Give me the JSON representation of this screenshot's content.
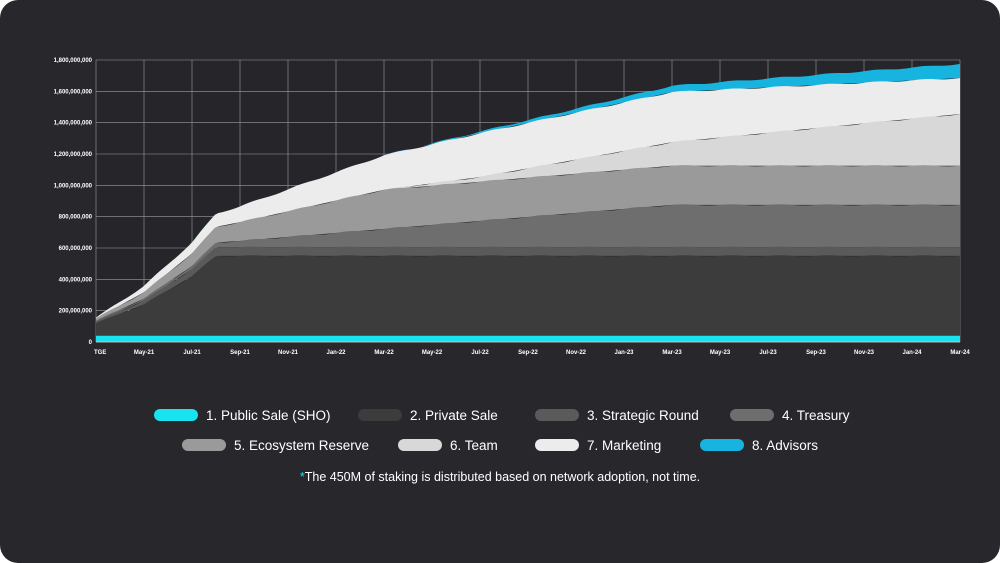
{
  "chart_data": {
    "type": "area",
    "stacked": true,
    "title": "",
    "xlabel": "",
    "ylabel": "",
    "ylim": [
      0,
      1800000000
    ],
    "y_ticks": [
      0,
      200000000,
      400000000,
      600000000,
      800000000,
      1000000000,
      1200000000,
      1400000000,
      1600000000,
      1800000000
    ],
    "y_tick_labels": [
      "0",
      "200,000,000",
      "400,000,000",
      "600,000,000",
      "800,000,000",
      "1,000,000,000",
      "1,200,000,000",
      "1,400,000,000",
      "1,600,000,000",
      "1,800,000,000"
    ],
    "x_tick_labels": [
      "TGE",
      "May-21",
      "Jul-21",
      "Sep-21",
      "Nov-21",
      "Jan-22",
      "Mar-22",
      "May-22",
      "Jul-22",
      "Sep-22",
      "Nov-22",
      "Jan-23",
      "Mar-23",
      "May-23",
      "Jul-23",
      "Sep-23",
      "Nov-23",
      "Jan-24",
      "Mar-24"
    ],
    "grid": true,
    "legend_position": "bottom",
    "series": [
      {
        "name": "1. Public Sale (SHO)",
        "color": "#19e3ee",
        "x": [
          "TGE",
          "Mar-24"
        ],
        "values": [
          40000000,
          40000000
        ]
      },
      {
        "name": "2. Private Sale",
        "color": "#3c3c3c",
        "x": [
          "TGE",
          "May-21",
          "Jul-21",
          "Aug-21",
          "Mar-24"
        ],
        "values": [
          80000000,
          200000000,
          380000000,
          510000000,
          510000000
        ]
      },
      {
        "name": "3. Strategic Round",
        "color": "#5a5a5a",
        "x": [
          "TGE",
          "May-21",
          "Jul-21",
          "Aug-21",
          "Mar-24"
        ],
        "values": [
          10000000,
          25000000,
          45000000,
          55000000,
          55000000
        ]
      },
      {
        "name": "4. Treasury",
        "color": "#6e6e6e",
        "x": [
          "TGE",
          "Jul-21",
          "Sep-21",
          "Mar-23",
          "Mar-24"
        ],
        "values": [
          5000000,
          20000000,
          40000000,
          270000000,
          270000000
        ]
      },
      {
        "name": "5. Ecosystem Reserve",
        "color": "#9a9a9a",
        "x": [
          "TGE",
          "May-21",
          "Jul-21",
          "Sep-21",
          "Mar-22",
          "Mar-23",
          "Mar-24"
        ],
        "values": [
          15000000,
          40000000,
          80000000,
          120000000,
          250000000,
          250000000,
          250000000
        ]
      },
      {
        "name": "6. Team",
        "color": "#d8d8d8",
        "x": [
          "TGE",
          "Mar-22",
          "Jul-22",
          "Mar-23",
          "Mar-24"
        ],
        "values": [
          0,
          0,
          30000000,
          150000000,
          330000000
        ]
      },
      {
        "name": "7. Marketing",
        "color": "#ececec",
        "x": [
          "TGE",
          "May-21",
          "Sep-21",
          "Mar-22",
          "Jul-22",
          "Mar-23",
          "Mar-24"
        ],
        "values": [
          5000000,
          40000000,
          100000000,
          220000000,
          280000000,
          320000000,
          230000000
        ]
      },
      {
        "name": "8. Advisors",
        "color": "#18b4e0",
        "x": [
          "TGE",
          "Mar-22",
          "Jul-22",
          "Mar-23",
          "Mar-24"
        ],
        "values": [
          0,
          0,
          10000000,
          40000000,
          90000000
        ]
      }
    ]
  },
  "legend": {
    "row1": [
      "1. Public Sale (SHO)",
      "2. Private Sale",
      "3. Strategic Round",
      "4. Treasury"
    ],
    "row2": [
      "5. Ecosystem Reserve",
      "6. Team",
      "7. Marketing",
      "8. Advisors"
    ]
  },
  "note": {
    "asterisk": "*",
    "text": "The 450M of staking is distributed based on network adoption, not time."
  }
}
